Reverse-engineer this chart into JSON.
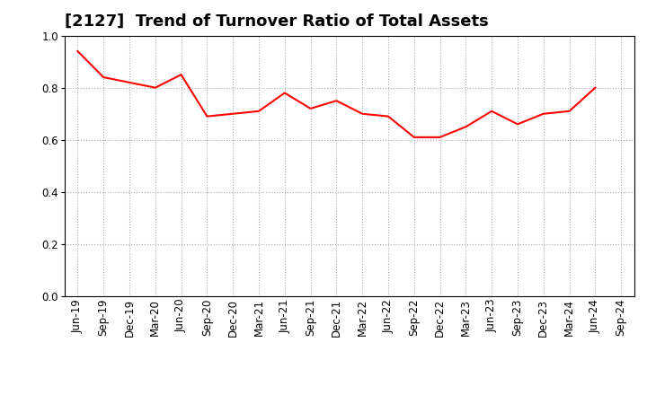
{
  "title": "[2127]  Trend of Turnover Ratio of Total Assets",
  "x_labels": [
    "Jun-19",
    "Sep-19",
    "Dec-19",
    "Mar-20",
    "Jun-20",
    "Sep-20",
    "Dec-20",
    "Mar-21",
    "Jun-21",
    "Sep-21",
    "Dec-21",
    "Mar-22",
    "Jun-22",
    "Sep-22",
    "Dec-22",
    "Mar-23",
    "Jun-23",
    "Sep-23",
    "Dec-23",
    "Mar-24",
    "Jun-24",
    "Sep-24"
  ],
  "y_values": [
    0.94,
    0.84,
    0.82,
    0.8,
    0.85,
    0.69,
    0.7,
    0.71,
    0.78,
    0.72,
    0.75,
    0.7,
    0.69,
    0.61,
    0.61,
    0.65,
    0.71,
    0.66,
    0.7,
    0.71,
    0.8,
    null
  ],
  "line_color": "#FF0000",
  "line_width": 1.5,
  "ylim": [
    0.0,
    1.0
  ],
  "yticks": [
    0.0,
    0.2,
    0.4,
    0.6,
    0.8,
    1.0
  ],
  "grid_color": "#AAAAAA",
  "background_color": "#FFFFFF",
  "title_fontsize": 13,
  "tick_fontsize": 8.5
}
